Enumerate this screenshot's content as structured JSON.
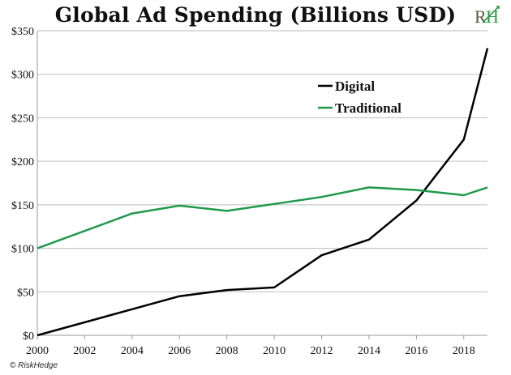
{
  "page": {
    "title": "Global Ad Spending (Billions USD)",
    "footer": "© RiskHedge",
    "logo_letters": "RH",
    "logo_colors": {
      "R": "#5a5a3a",
      "H": "#2e9a4a"
    }
  },
  "chart_data": {
    "type": "line",
    "title": "Global Ad Spending (Billions USD)",
    "xlabel": "",
    "ylabel": "",
    "xlim": [
      2000,
      2019
    ],
    "ylim": [
      0,
      350
    ],
    "x_ticks": [
      2000,
      2002,
      2004,
      2006,
      2008,
      2010,
      2012,
      2014,
      2016,
      2018
    ],
    "y_ticks": [
      0,
      50,
      100,
      150,
      200,
      250,
      300,
      350
    ],
    "y_tick_labels": [
      "$0",
      "$50",
      "$100",
      "$150",
      "$200",
      "$250",
      "$300",
      "$350"
    ],
    "grid": "horizontal",
    "legend_position": "upper-center-right",
    "series": [
      {
        "name": "Digital",
        "color": "#000000",
        "x": [
          2000,
          2004,
          2006,
          2008,
          2010,
          2012,
          2014,
          2016,
          2018,
          2019
        ],
        "y": [
          0,
          30,
          45,
          52,
          55,
          92,
          110,
          155,
          225,
          330
        ]
      },
      {
        "name": "Traditional",
        "color": "#1f9a4a",
        "x": [
          2000,
          2004,
          2006,
          2008,
          2010,
          2012,
          2014,
          2016,
          2018,
          2019
        ],
        "y": [
          100,
          140,
          149,
          143,
          151,
          159,
          170,
          167,
          161,
          170
        ]
      }
    ]
  }
}
